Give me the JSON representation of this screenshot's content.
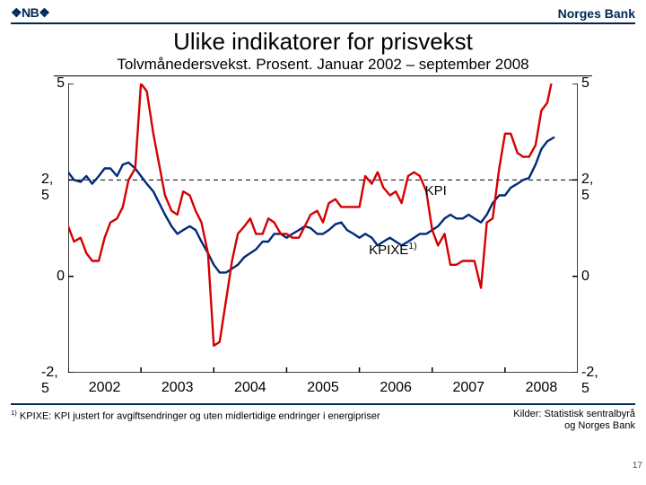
{
  "header": {
    "logo": "❖NB❖",
    "bank": "Norges Bank"
  },
  "title": "Ulike indikatorer for prisvekst",
  "subtitle": "Tolvmånedersvekst. Prosent. Januar 2002 – september 2008",
  "chart": {
    "type": "line",
    "xlim": [
      2002,
      2009
    ],
    "ylim": [
      -2.5,
      5
    ],
    "yticks": [
      -2.5,
      0,
      2.5,
      5
    ],
    "ytick_labels": [
      "-2, 5",
      "0",
      "2, 5",
      "5"
    ],
    "xticks": [
      2002,
      2003,
      2004,
      2005,
      2006,
      2007,
      2008
    ],
    "xtick_labels": [
      "2002",
      "2003",
      "2004",
      "2005",
      "2006",
      "2007",
      "2008"
    ],
    "background_color": "#ffffff",
    "axis_color": "#000000",
    "target_line": {
      "y": 2.5,
      "color": "#000000",
      "dash": "5,4",
      "width": 1
    },
    "series": [
      {
        "name": "KPIXE",
        "label": "KPIXE",
        "label_sup": "1)",
        "label_pos_frac": [
          0.59,
          0.545
        ],
        "color": "#002a7a",
        "width": 2.4,
        "points": [
          [
            2002.0,
            2.7
          ],
          [
            2002.08,
            2.5
          ],
          [
            2002.17,
            2.45
          ],
          [
            2002.25,
            2.6
          ],
          [
            2002.33,
            2.4
          ],
          [
            2002.42,
            2.6
          ],
          [
            2002.5,
            2.8
          ],
          [
            2002.58,
            2.8
          ],
          [
            2002.67,
            2.6
          ],
          [
            2002.75,
            2.9
          ],
          [
            2002.83,
            2.95
          ],
          [
            2002.92,
            2.8
          ],
          [
            2003.0,
            2.6
          ],
          [
            2003.08,
            2.4
          ],
          [
            2003.17,
            2.2
          ],
          [
            2003.25,
            1.9
          ],
          [
            2003.33,
            1.6
          ],
          [
            2003.42,
            1.3
          ],
          [
            2003.5,
            1.1
          ],
          [
            2003.58,
            1.2
          ],
          [
            2003.67,
            1.3
          ],
          [
            2003.75,
            1.2
          ],
          [
            2003.83,
            0.9
          ],
          [
            2003.92,
            0.6
          ],
          [
            2004.0,
            0.3
          ],
          [
            2004.08,
            0.1
          ],
          [
            2004.17,
            0.1
          ],
          [
            2004.25,
            0.2
          ],
          [
            2004.33,
            0.3
          ],
          [
            2004.42,
            0.5
          ],
          [
            2004.5,
            0.6
          ],
          [
            2004.58,
            0.7
          ],
          [
            2004.67,
            0.9
          ],
          [
            2004.75,
            0.9
          ],
          [
            2004.83,
            1.1
          ],
          [
            2004.92,
            1.1
          ],
          [
            2005.0,
            1.0
          ],
          [
            2005.08,
            1.1
          ],
          [
            2005.17,
            1.2
          ],
          [
            2005.25,
            1.3
          ],
          [
            2005.33,
            1.25
          ],
          [
            2005.42,
            1.1
          ],
          [
            2005.5,
            1.1
          ],
          [
            2005.58,
            1.2
          ],
          [
            2005.67,
            1.35
          ],
          [
            2005.75,
            1.4
          ],
          [
            2005.83,
            1.2
          ],
          [
            2005.92,
            1.1
          ],
          [
            2006.0,
            1.0
          ],
          [
            2006.08,
            1.1
          ],
          [
            2006.17,
            1.0
          ],
          [
            2006.25,
            0.8
          ],
          [
            2006.33,
            0.9
          ],
          [
            2006.42,
            1.0
          ],
          [
            2006.5,
            0.9
          ],
          [
            2006.58,
            0.8
          ],
          [
            2006.67,
            0.9
          ],
          [
            2006.75,
            1.0
          ],
          [
            2006.83,
            1.1
          ],
          [
            2006.92,
            1.1
          ],
          [
            2007.0,
            1.2
          ],
          [
            2007.08,
            1.3
          ],
          [
            2007.17,
            1.5
          ],
          [
            2007.25,
            1.6
          ],
          [
            2007.33,
            1.5
          ],
          [
            2007.42,
            1.5
          ],
          [
            2007.5,
            1.6
          ],
          [
            2007.58,
            1.5
          ],
          [
            2007.67,
            1.4
          ],
          [
            2007.75,
            1.6
          ],
          [
            2007.83,
            1.9
          ],
          [
            2007.92,
            2.1
          ],
          [
            2008.0,
            2.1
          ],
          [
            2008.08,
            2.3
          ],
          [
            2008.17,
            2.4
          ],
          [
            2008.25,
            2.5
          ],
          [
            2008.33,
            2.55
          ],
          [
            2008.42,
            2.9
          ],
          [
            2008.5,
            3.3
          ],
          [
            2008.58,
            3.5
          ],
          [
            2008.67,
            3.6
          ]
        ]
      },
      {
        "name": "KPI",
        "label": "KPI",
        "label_pos_frac": [
          0.7,
          0.345
        ],
        "color": "#d40000",
        "width": 2.4,
        "points": [
          [
            2002.0,
            1.3
          ],
          [
            2002.08,
            0.9
          ],
          [
            2002.17,
            1.0
          ],
          [
            2002.25,
            0.6
          ],
          [
            2002.33,
            0.4
          ],
          [
            2002.42,
            0.4
          ],
          [
            2002.5,
            1.0
          ],
          [
            2002.58,
            1.4
          ],
          [
            2002.67,
            1.5
          ],
          [
            2002.75,
            1.8
          ],
          [
            2002.83,
            2.5
          ],
          [
            2002.92,
            2.8
          ],
          [
            2003.0,
            5.0
          ],
          [
            2003.08,
            4.8
          ],
          [
            2003.17,
            3.7
          ],
          [
            2003.25,
            2.9
          ],
          [
            2003.33,
            2.1
          ],
          [
            2003.42,
            1.7
          ],
          [
            2003.5,
            1.6
          ],
          [
            2003.58,
            2.2
          ],
          [
            2003.67,
            2.1
          ],
          [
            2003.75,
            1.7
          ],
          [
            2003.83,
            1.4
          ],
          [
            2003.92,
            0.6
          ],
          [
            2004.0,
            -1.8
          ],
          [
            2004.08,
            -1.7
          ],
          [
            2004.17,
            -0.6
          ],
          [
            2004.25,
            0.4
          ],
          [
            2004.33,
            1.1
          ],
          [
            2004.42,
            1.3
          ],
          [
            2004.5,
            1.5
          ],
          [
            2004.58,
            1.1
          ],
          [
            2004.67,
            1.1
          ],
          [
            2004.75,
            1.5
          ],
          [
            2004.83,
            1.4
          ],
          [
            2004.92,
            1.1
          ],
          [
            2005.0,
            1.1
          ],
          [
            2005.08,
            1.0
          ],
          [
            2005.17,
            1.0
          ],
          [
            2005.25,
            1.3
          ],
          [
            2005.33,
            1.6
          ],
          [
            2005.42,
            1.7
          ],
          [
            2005.5,
            1.4
          ],
          [
            2005.58,
            1.9
          ],
          [
            2005.67,
            2.0
          ],
          [
            2005.75,
            1.8
          ],
          [
            2005.83,
            1.8
          ],
          [
            2005.92,
            1.8
          ],
          [
            2006.0,
            1.8
          ],
          [
            2006.08,
            2.6
          ],
          [
            2006.17,
            2.4
          ],
          [
            2006.25,
            2.7
          ],
          [
            2006.33,
            2.3
          ],
          [
            2006.42,
            2.1
          ],
          [
            2006.5,
            2.2
          ],
          [
            2006.58,
            1.9
          ],
          [
            2006.67,
            2.6
          ],
          [
            2006.75,
            2.7
          ],
          [
            2006.83,
            2.6
          ],
          [
            2006.92,
            2.2
          ],
          [
            2007.0,
            1.2
          ],
          [
            2007.08,
            0.8
          ],
          [
            2007.17,
            1.1
          ],
          [
            2007.25,
            0.3
          ],
          [
            2007.33,
            0.3
          ],
          [
            2007.42,
            0.4
          ],
          [
            2007.5,
            0.4
          ],
          [
            2007.58,
            0.4
          ],
          [
            2007.67,
            -0.3
          ],
          [
            2007.75,
            1.4
          ],
          [
            2007.83,
            1.5
          ],
          [
            2007.92,
            2.8
          ],
          [
            2008.0,
            3.7
          ],
          [
            2008.08,
            3.7
          ],
          [
            2008.17,
            3.2
          ],
          [
            2008.25,
            3.1
          ],
          [
            2008.33,
            3.1
          ],
          [
            2008.42,
            3.4
          ],
          [
            2008.5,
            4.3
          ],
          [
            2008.58,
            4.5
          ],
          [
            2008.67,
            5.3
          ]
        ]
      }
    ]
  },
  "footnote": {
    "left_sup": "1)",
    "left": " KPIXE: KPI justert for avgiftsendringer og uten midlertidige endringer i energipriser",
    "right1": "Kilder: Statistisk sentralbyrå",
    "right2": "og Norges Bank",
    "pagenum": "17"
  }
}
